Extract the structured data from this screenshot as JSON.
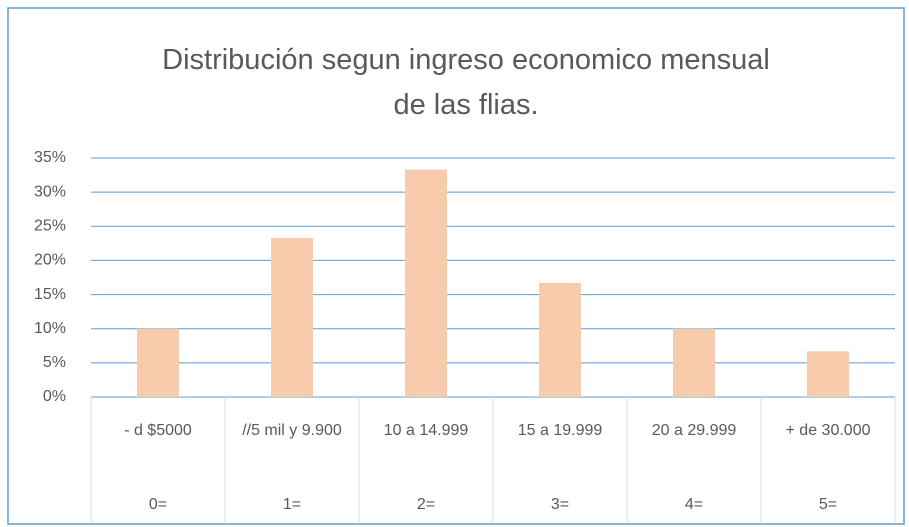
{
  "chart_data": {
    "type": "bar",
    "title": "Distribución segun ingreso economico mensual de las flias.",
    "categories": [
      "- d $5000",
      "//5 mil y 9.900",
      "10 a 14.999",
      "15 a 19.999",
      "20 a 29.999",
      "+ de 30.000"
    ],
    "groups": [
      "0=",
      "1=",
      "2=",
      "3=",
      "4=",
      "5="
    ],
    "values": [
      10,
      23.3,
      33.3,
      16.7,
      10,
      6.7
    ],
    "color": "#f8cbad",
    "ylim": [
      0,
      35
    ],
    "yticks": [
      {
        "value": 0,
        "label": "0%"
      },
      {
        "value": 5,
        "label": "5%"
      },
      {
        "value": 10,
        "label": "10%"
      },
      {
        "value": 15,
        "label": "15%"
      },
      {
        "value": 20,
        "label": "20%"
      },
      {
        "value": 25,
        "label": "25%"
      },
      {
        "value": 30,
        "label": "30%"
      },
      {
        "value": 35,
        "label": "35%"
      }
    ],
    "grid": true
  }
}
